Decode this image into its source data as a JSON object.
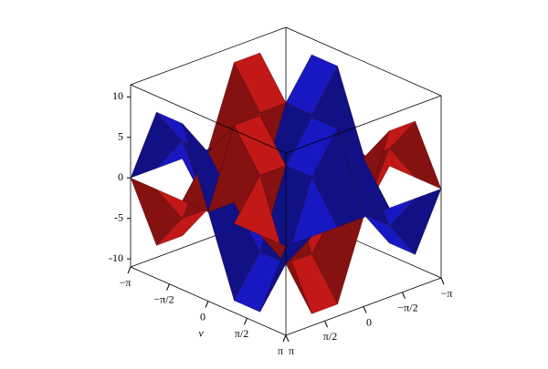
{
  "chart_data": {
    "type": "surface3d",
    "u": [
      -3.1416,
      -2.0944,
      -1.0472,
      0,
      1.0472,
      2.0944,
      3.1416
    ],
    "v": [
      -3.1416,
      -2.0944,
      -1.0472,
      0,
      1.0472,
      2.0944,
      3.1416
    ],
    "series": [
      {
        "color": "#ff2020",
        "values": [
          [
            0,
            0,
            0,
            0,
            0,
            0,
            0
          ],
          [
            9.53,
            4.76,
            -4.76,
            -9.53,
            -4.76,
            4.76,
            9.53
          ],
          [
            9.53,
            4.76,
            -4.76,
            -9.53,
            -4.76,
            4.76,
            9.53
          ],
          [
            0,
            0,
            0,
            0,
            0,
            0,
            0
          ],
          [
            -9.53,
            -4.76,
            4.76,
            9.53,
            4.76,
            -4.76,
            -9.53
          ],
          [
            -9.53,
            -4.76,
            4.76,
            9.53,
            4.76,
            -4.76,
            -9.53
          ],
          [
            0,
            0,
            0,
            0,
            0,
            0,
            0
          ]
        ]
      },
      {
        "color": "#2020ff",
        "values": [
          [
            0,
            9.53,
            9.53,
            0,
            -9.53,
            -9.53,
            0
          ],
          [
            0,
            4.76,
            4.76,
            0,
            -4.76,
            -4.76,
            0
          ],
          [
            0,
            -4.76,
            -4.76,
            0,
            4.76,
            4.76,
            0
          ],
          [
            0,
            -9.53,
            -9.53,
            0,
            9.53,
            9.53,
            0
          ],
          [
            0,
            -4.76,
            -4.76,
            0,
            4.76,
            4.76,
            0
          ],
          [
            0,
            4.76,
            4.76,
            0,
            -4.76,
            -4.76,
            0
          ],
          [
            0,
            9.53,
            9.53,
            0,
            -9.53,
            -9.53,
            0
          ]
        ]
      }
    ],
    "ulim": [
      -3.1416,
      3.1416
    ],
    "vlim": [
      -3.1416,
      3.1416
    ],
    "zlim": [
      -11,
      11.5
    ],
    "zticks": [
      -10,
      -5,
      0,
      5,
      10
    ],
    "uticks": [
      {
        "value": -3.1416,
        "label": "−π"
      },
      {
        "value": -1.5708,
        "label": "−π/2"
      },
      {
        "value": 0,
        "label": "0"
      },
      {
        "value": 1.5708,
        "label": "π/2"
      },
      {
        "value": 3.1416,
        "label": "π"
      }
    ],
    "vticks": [
      {
        "value": -3.1416,
        "label": "−π"
      },
      {
        "value": -1.5708,
        "label": "−π/2"
      },
      {
        "value": 0,
        "label": "0"
      },
      {
        "value": 1.5708,
        "label": "π/2"
      },
      {
        "value": 3.1416,
        "label": "π"
      }
    ],
    "vlabel": "v"
  }
}
